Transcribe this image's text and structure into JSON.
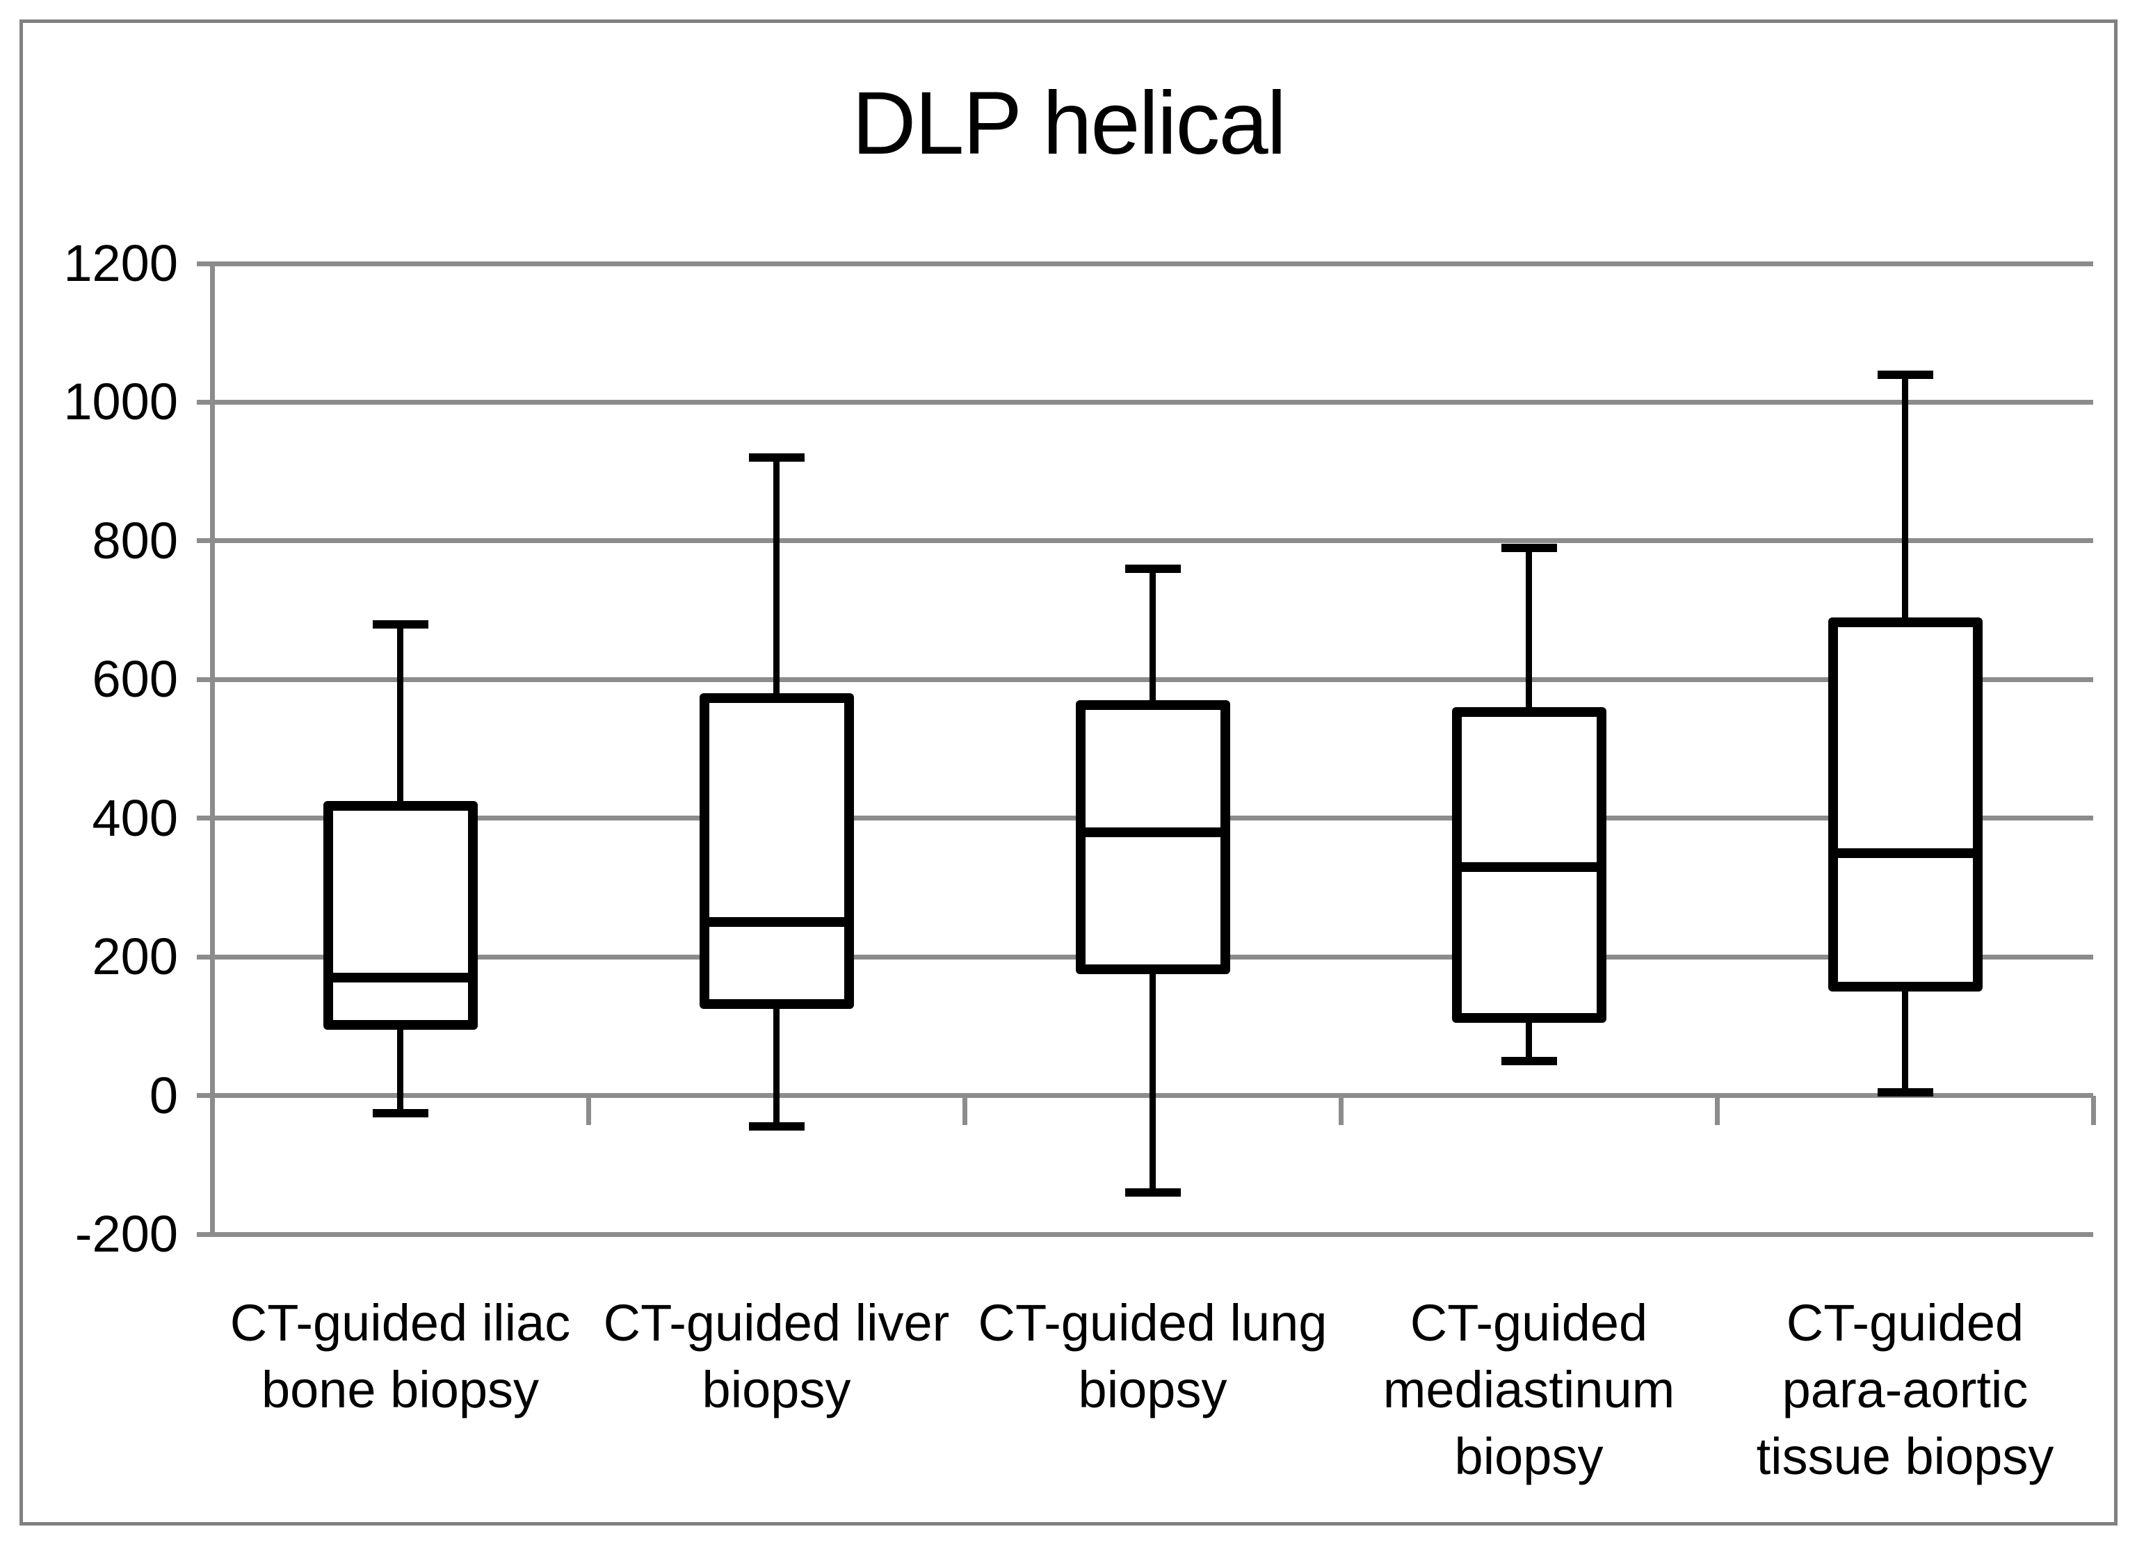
{
  "figure": {
    "background_color": "#ffffff",
    "border_color": "#808080",
    "gridline_color": "#8C8C8C",
    "box_color": "#000000",
    "text_color": "#000000"
  },
  "chart_data": {
    "type": "box",
    "title": "DLP helical",
    "xlabel": "",
    "ylabel": "",
    "ylim": [
      -200,
      1200
    ],
    "yticks": [
      1200,
      1000,
      800,
      600,
      400,
      200,
      0,
      -200
    ],
    "grid": true,
    "legend": false,
    "categories": [
      "CT-guided iliac bone biopsy",
      "CT-guided liver biopsy",
      "CT-guided lung biopsy",
      "CT-guided mediastinum biopsy",
      "CT-guided para-aortic tissue biopsy"
    ],
    "boxes": [
      {
        "category": "CT-guided iliac bone biopsy",
        "label_lines": [
          "CT-guided iliac",
          "bone biopsy"
        ],
        "min": -25,
        "q1": 95,
        "median": 170,
        "q3": 425,
        "max": 680
      },
      {
        "category": "CT-guided liver biopsy",
        "label_lines": [
          "CT-guided liver",
          "biopsy"
        ],
        "min": -45,
        "q1": 125,
        "median": 250,
        "q3": 580,
        "max": 920
      },
      {
        "category": "CT-guided lung biopsy",
        "label_lines": [
          "CT-guided lung",
          "biopsy"
        ],
        "min": -140,
        "q1": 175,
        "median": 380,
        "q3": 570,
        "max": 760
      },
      {
        "category": "CT-guided mediastinum biopsy",
        "label_lines": [
          "CT-guided",
          "mediastinum",
          "biopsy"
        ],
        "min": 50,
        "q1": 105,
        "median": 330,
        "q3": 560,
        "max": 790
      },
      {
        "category": "CT-guided para-aortic tissue biopsy",
        "label_lines": [
          "CT-guided",
          "para-aortic",
          "tissue biopsy"
        ],
        "min": 5,
        "q1": 150,
        "median": 350,
        "q3": 690,
        "max": 1040
      }
    ]
  }
}
